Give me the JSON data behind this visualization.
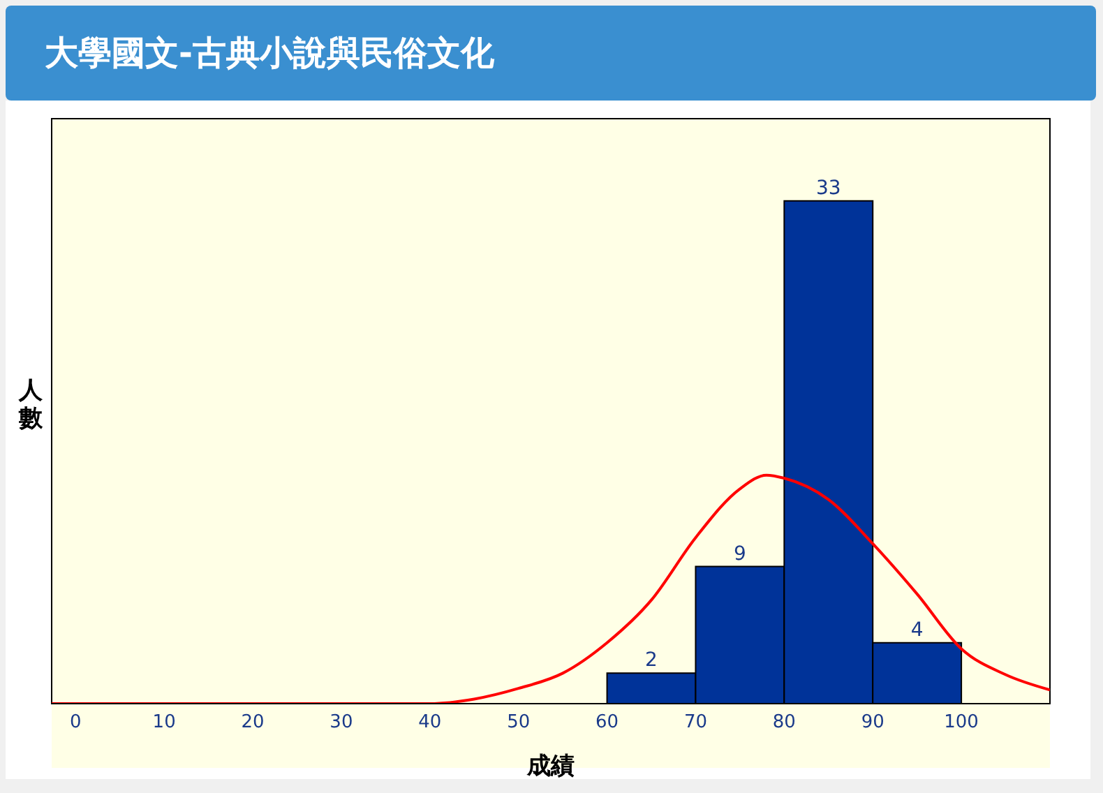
{
  "chart_data": {
    "type": "histogram",
    "title": "大學國文-古典小說與民俗文化",
    "xlabel": "成績",
    "ylabel": "人數",
    "bins": [
      60,
      70,
      80,
      90,
      100
    ],
    "values": [
      2,
      9,
      33,
      4
    ],
    "color": "#003399",
    "value_labels": [
      "2",
      "9",
      "33",
      "4"
    ],
    "series": [
      {
        "type": "line",
        "color": "#ff0000",
        "x": [
          -2.7,
          40,
          45,
          50,
          55,
          60,
          65,
          70,
          75,
          78,
          80,
          85,
          90,
          95,
          100,
          105,
          110
        ],
        "values": [
          0,
          0,
          0.3,
          1,
          2,
          4,
          6.8,
          10.9,
          14.1,
          15,
          14.8,
          13.4,
          10.5,
          7.2,
          3.6,
          1.9,
          0.9
        ]
      }
    ],
    "xlim": [
      -2.7,
      110
    ],
    "xticks": [
      0,
      10,
      20,
      30,
      40,
      50,
      60,
      70,
      80,
      90,
      100
    ],
    "ylim": [
      0,
      38.4
    ],
    "tick_labels": "x"
  }
}
